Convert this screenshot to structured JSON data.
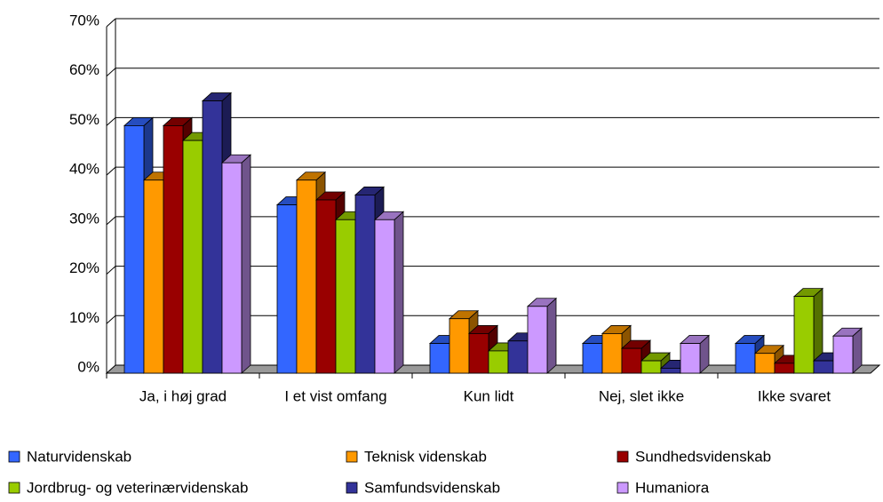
{
  "chart_data": {
    "type": "bar3d",
    "categories": [
      "Ja, i høj grad",
      "I et vist omfang",
      "Kun lidt",
      "Nej, slet ikke",
      "Ikke svaret"
    ],
    "series": [
      {
        "name": "Naturvidenskab",
        "color": "#3366ff",
        "values": [
          50,
          34,
          6,
          6,
          6
        ]
      },
      {
        "name": "Teknisk videnskab",
        "color": "#ff9900",
        "values": [
          39,
          39,
          11,
          8,
          4
        ]
      },
      {
        "name": "Sundhedsvidenskab",
        "color": "#990000",
        "values": [
          50,
          35,
          8,
          5,
          2
        ]
      },
      {
        "name": "Jordbrug- og veterinærvidenskab",
        "color": "#99cc00",
        "values": [
          47,
          31,
          4.5,
          2.5,
          15.5
        ]
      },
      {
        "name": "Samfundsvidenskab",
        "color": "#333399",
        "values": [
          55,
          36,
          6.5,
          1,
          2.5
        ]
      },
      {
        "name": "Humaniora",
        "color": "#cc99ff",
        "values": [
          42.5,
          31,
          13.5,
          6,
          7.5
        ]
      }
    ],
    "ylim": [
      0,
      70
    ],
    "yticks": [
      {
        "value": 0,
        "label": "0%"
      },
      {
        "value": 10,
        "label": "10%"
      },
      {
        "value": 20,
        "label": "20%"
      },
      {
        "value": 30,
        "label": "30%"
      },
      {
        "value": 40,
        "label": "40%"
      },
      {
        "value": 50,
        "label": "50%"
      },
      {
        "value": 60,
        "label": "60%"
      },
      {
        "value": 70,
        "label": "70%"
      }
    ],
    "grid": true,
    "legend": "bottom"
  }
}
